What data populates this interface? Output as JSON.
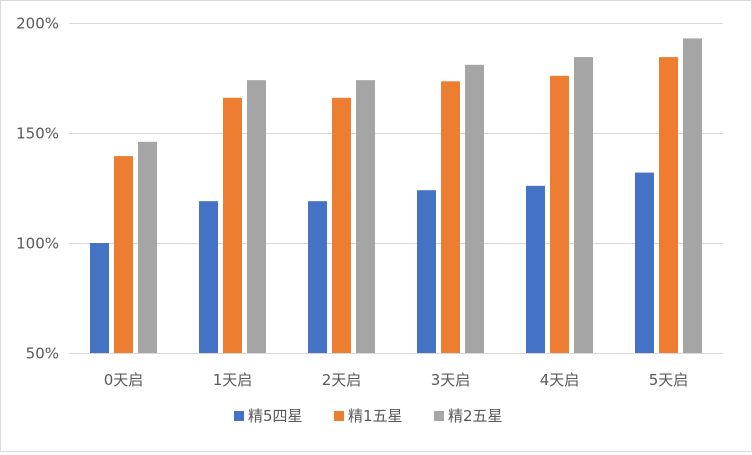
{
  "chart_data": {
    "type": "bar",
    "title": "",
    "xlabel": "",
    "ylabel": "",
    "categories": [
      "0天启",
      "1天启",
      "2天启",
      "3天启",
      "4天启",
      "5天启"
    ],
    "series": [
      {
        "name": "精5四星",
        "color": "#4472c4",
        "values": [
          100,
          119,
          119,
          124,
          126,
          132
        ]
      },
      {
        "name": "精1五星",
        "color": "#ed7d31",
        "values": [
          139.5,
          166,
          166,
          173.5,
          176,
          184.5
        ]
      },
      {
        "name": "精2五星",
        "color": "#a5a5a5",
        "values": [
          146,
          174,
          174,
          181,
          184.5,
          193
        ]
      }
    ],
    "ylim": [
      50,
      200
    ],
    "yticks": [
      50,
      100,
      150,
      200
    ],
    "ytick_labels": [
      "50%",
      "100%",
      "150%",
      "200%"
    ],
    "grid": true,
    "legend_position": "bottom"
  }
}
